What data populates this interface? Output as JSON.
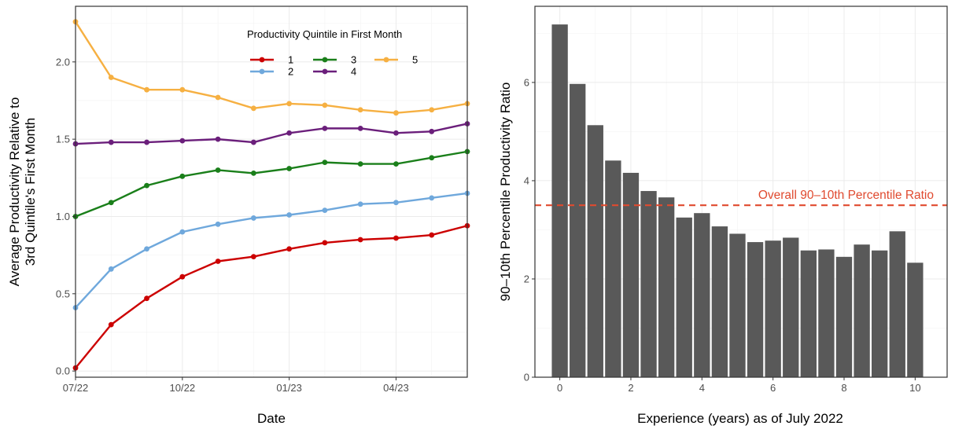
{
  "chart_data": [
    {
      "type": "line",
      "xlabel": "Date",
      "ylabel_line1": "Average Productivity Relative to",
      "ylabel_line2": "3rd Quintile's First Month",
      "x_dates": [
        "2022-07",
        "2022-08",
        "2022-09",
        "2022-10",
        "2022-11",
        "2022-12",
        "2023-01",
        "2023-02",
        "2023-03",
        "2023-04",
        "2023-05",
        "2023-06"
      ],
      "x_ticks": [
        {
          "date": "2022-07",
          "label": "07/22"
        },
        {
          "date": "2022-10",
          "label": "10/22"
        },
        {
          "date": "2023-01",
          "label": "01/23"
        },
        {
          "date": "2023-04",
          "label": "04/23"
        }
      ],
      "ylim": [
        -0.04,
        2.36
      ],
      "y_ticks": [
        0.0,
        0.5,
        1.0,
        1.5,
        2.0
      ],
      "y_tick_labels": [
        "0.0",
        "0.5",
        "1.0",
        "1.5",
        "2.0"
      ],
      "grid": true,
      "legend_title": "Productivity Quintile in First Month",
      "legend_position": "top-right",
      "series": [
        {
          "name": "1",
          "color": "#CC0000",
          "values": [
            0.02,
            0.3,
            0.47,
            0.61,
            0.71,
            0.74,
            0.79,
            0.83,
            0.85,
            0.86,
            0.88,
            0.94
          ]
        },
        {
          "name": "2",
          "color": "#6FA8DC",
          "values": [
            0.41,
            0.66,
            0.79,
            0.9,
            0.95,
            0.99,
            1.01,
            1.04,
            1.08,
            1.09,
            1.12,
            1.15
          ]
        },
        {
          "name": "3",
          "color": "#1A7F1A",
          "values": [
            1.0,
            1.09,
            1.2,
            1.26,
            1.3,
            1.28,
            1.31,
            1.35,
            1.34,
            1.34,
            1.38,
            1.42
          ]
        },
        {
          "name": "4",
          "color": "#6B1F7B",
          "values": [
            1.47,
            1.48,
            1.48,
            1.49,
            1.5,
            1.48,
            1.54,
            1.57,
            1.57,
            1.54,
            1.55,
            1.6
          ]
        },
        {
          "name": "5",
          "color": "#F6B042",
          "values": [
            2.26,
            1.9,
            1.82,
            1.82,
            1.77,
            1.7,
            1.73,
            1.72,
            1.69,
            1.67,
            1.69,
            1.73
          ]
        }
      ]
    },
    {
      "type": "bar",
      "xlabel": "Experience (years) as of July 2022",
      "ylabel": "90–10th Percentile Productivity Ratio",
      "x": [
        0.0,
        0.5,
        1.0,
        1.5,
        2.0,
        2.5,
        3.0,
        3.5,
        4.0,
        4.5,
        5.0,
        5.5,
        6.0,
        6.5,
        7.0,
        7.5,
        8.0,
        8.5,
        9.0,
        9.5,
        10.0
      ],
      "values": [
        7.18,
        5.97,
        5.13,
        4.41,
        4.16,
        3.79,
        3.66,
        3.25,
        3.34,
        3.07,
        2.92,
        2.75,
        2.78,
        2.84,
        2.58,
        2.6,
        2.45,
        2.7,
        2.58,
        2.97,
        2.33
      ],
      "xlim": [
        -0.7,
        10.9
      ],
      "ylim": [
        0,
        7.55
      ],
      "x_ticks": [
        0,
        2,
        4,
        6,
        8,
        10
      ],
      "x_tick_labels": [
        "0",
        "2",
        "4",
        "6",
        "8",
        "10"
      ],
      "y_ticks": [
        0,
        2,
        4,
        6
      ],
      "y_tick_labels": [
        "0",
        "2",
        "4",
        "6"
      ],
      "grid": true,
      "bar_color": "#595959",
      "reference_line": {
        "value": 3.5,
        "label": "Overall 90–10th Percentile Ratio",
        "color": "#E04A2F",
        "style": "dashed"
      }
    }
  ]
}
